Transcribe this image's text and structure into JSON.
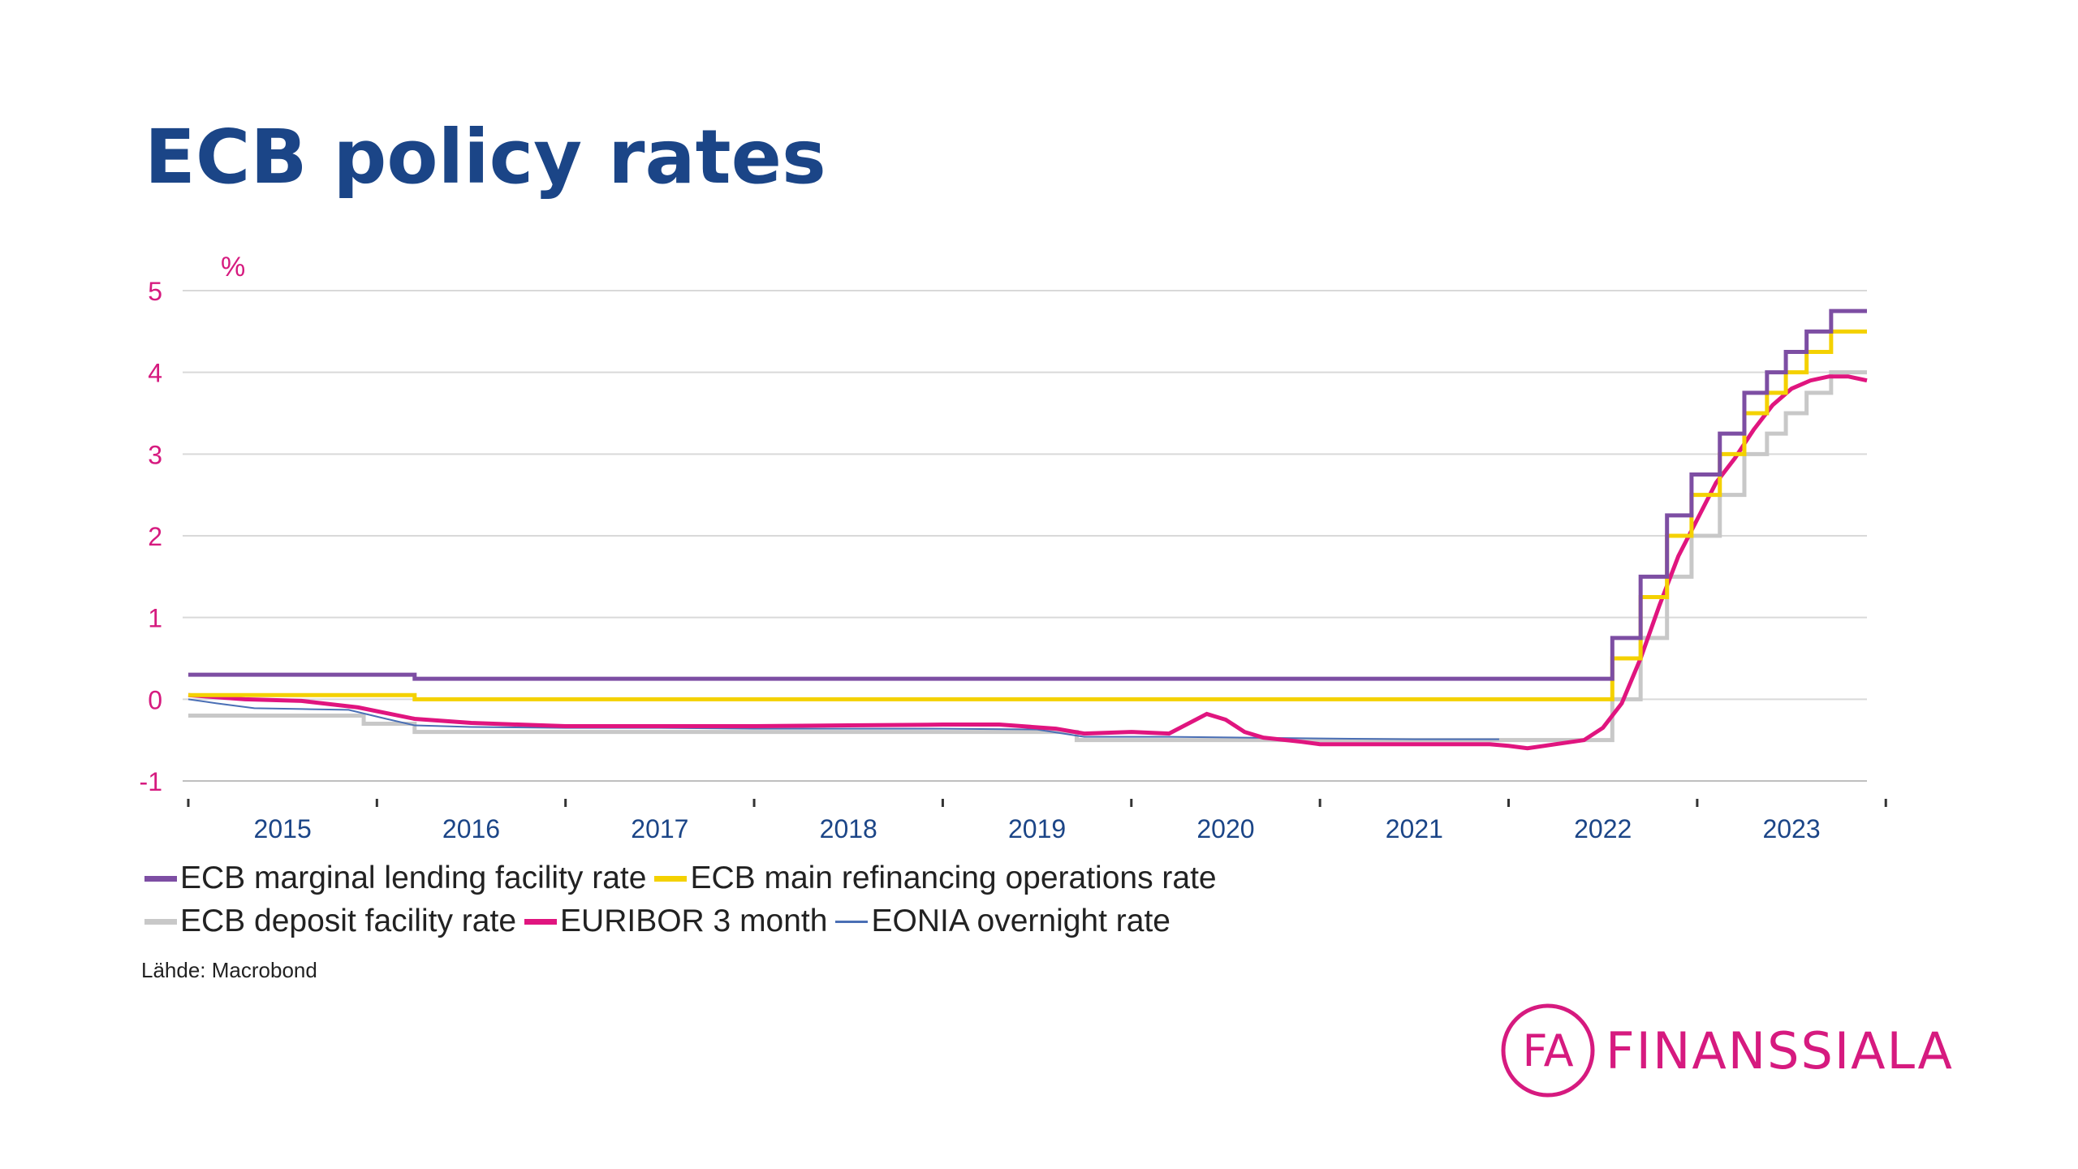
{
  "title": "ECB policy rates",
  "source": "Lähde: Macrobond",
  "logo": {
    "mark": "FA",
    "name": "FINANSSIALA",
    "color": "#d61a7f"
  },
  "chart_data": {
    "type": "line",
    "ylabel": "%",
    "ylim": [
      -1,
      5
    ],
    "yticks": [
      -1,
      0,
      1,
      2,
      3,
      4,
      5
    ],
    "xlim": [
      2014.97,
      2023.9
    ],
    "xticks": [
      "2015",
      "2016",
      "2017",
      "2018",
      "2019",
      "2020",
      "2021",
      "2022",
      "2023"
    ],
    "grid": true,
    "legend_position": "bottom",
    "colors": {
      "title": "#1b4587",
      "axis_ticks": "#d61a7f",
      "year_labels": "#1b4587",
      "grid": "#d9d9d9"
    },
    "series": [
      {
        "name": "ECB marginal lending facility rate",
        "color": "#7d4ea3",
        "style": "step",
        "width": 5,
        "x": [
          2015.0,
          2016.2,
          2022.55,
          2022.7,
          2022.84,
          2022.97,
          2023.12,
          2023.25,
          2023.37,
          2023.47,
          2023.58,
          2023.71,
          2023.9
        ],
        "y": [
          0.3,
          0.25,
          0.75,
          1.5,
          2.25,
          2.75,
          3.25,
          3.75,
          4.0,
          4.25,
          4.5,
          4.75,
          4.75
        ]
      },
      {
        "name": "ECB main refinancing operations rate",
        "color": "#f4d100",
        "style": "step",
        "width": 5,
        "x": [
          2015.0,
          2016.2,
          2022.55,
          2022.7,
          2022.84,
          2022.97,
          2023.12,
          2023.25,
          2023.37,
          2023.47,
          2023.58,
          2023.71,
          2023.9
        ],
        "y": [
          0.05,
          0.0,
          0.5,
          1.25,
          2.0,
          2.5,
          3.0,
          3.5,
          3.75,
          4.0,
          4.25,
          4.5,
          4.5
        ]
      },
      {
        "name": "ECB deposit facility rate",
        "color": "#c8c8c8",
        "style": "step",
        "width": 5,
        "x": [
          2015.0,
          2015.93,
          2016.2,
          2019.71,
          2022.55,
          2022.7,
          2022.84,
          2022.97,
          2023.12,
          2023.25,
          2023.37,
          2023.47,
          2023.58,
          2023.71,
          2023.9
        ],
        "y": [
          -0.2,
          -0.3,
          -0.4,
          -0.5,
          0.0,
          0.75,
          1.5,
          2.0,
          2.5,
          3.0,
          3.25,
          3.5,
          3.75,
          4.0,
          4.0
        ]
      },
      {
        "name": "EURIBOR 3 month",
        "color": "#e0157f",
        "style": "line",
        "width": 5,
        "x": [
          2015.0,
          2015.3,
          2015.6,
          2015.9,
          2016.2,
          2016.5,
          2017.0,
          2017.5,
          2018.0,
          2018.5,
          2019.0,
          2019.3,
          2019.6,
          2019.75,
          2020.0,
          2020.2,
          2020.4,
          2020.5,
          2020.6,
          2020.7,
          2020.9,
          2021.0,
          2021.3,
          2021.6,
          2021.9,
          2022.0,
          2022.1,
          2022.25,
          2022.4,
          2022.5,
          2022.6,
          2022.7,
          2022.8,
          2022.9,
          2023.0,
          2023.1,
          2023.2,
          2023.3,
          2023.4,
          2023.5,
          2023.6,
          2023.7,
          2023.8,
          2023.9
        ],
        "y": [
          0.05,
          0.0,
          -0.02,
          -0.1,
          -0.24,
          -0.29,
          -0.33,
          -0.33,
          -0.33,
          -0.32,
          -0.31,
          -0.31,
          -0.36,
          -0.42,
          -0.4,
          -0.42,
          -0.18,
          -0.25,
          -0.4,
          -0.47,
          -0.52,
          -0.55,
          -0.55,
          -0.55,
          -0.55,
          -0.57,
          -0.6,
          -0.55,
          -0.5,
          -0.35,
          -0.05,
          0.5,
          1.15,
          1.75,
          2.2,
          2.65,
          2.95,
          3.3,
          3.6,
          3.8,
          3.9,
          3.95,
          3.95,
          3.9
        ]
      },
      {
        "name": "EONIA overnight rate",
        "color": "#4a6fb5",
        "style": "line",
        "width": 2,
        "x": [
          2015.0,
          2015.15,
          2015.35,
          2015.6,
          2015.85,
          2016.05,
          2016.2,
          2016.5,
          2017.0,
          2017.5,
          2018.0,
          2018.5,
          2019.0,
          2019.5,
          2019.75,
          2020.2,
          2020.6,
          2021.0,
          2021.5,
          2021.95
        ],
        "y": [
          0.0,
          -0.05,
          -0.11,
          -0.12,
          -0.13,
          -0.24,
          -0.32,
          -0.34,
          -0.35,
          -0.35,
          -0.36,
          -0.36,
          -0.36,
          -0.37,
          -0.46,
          -0.46,
          -0.47,
          -0.48,
          -0.49,
          -0.49
        ]
      }
    ]
  }
}
